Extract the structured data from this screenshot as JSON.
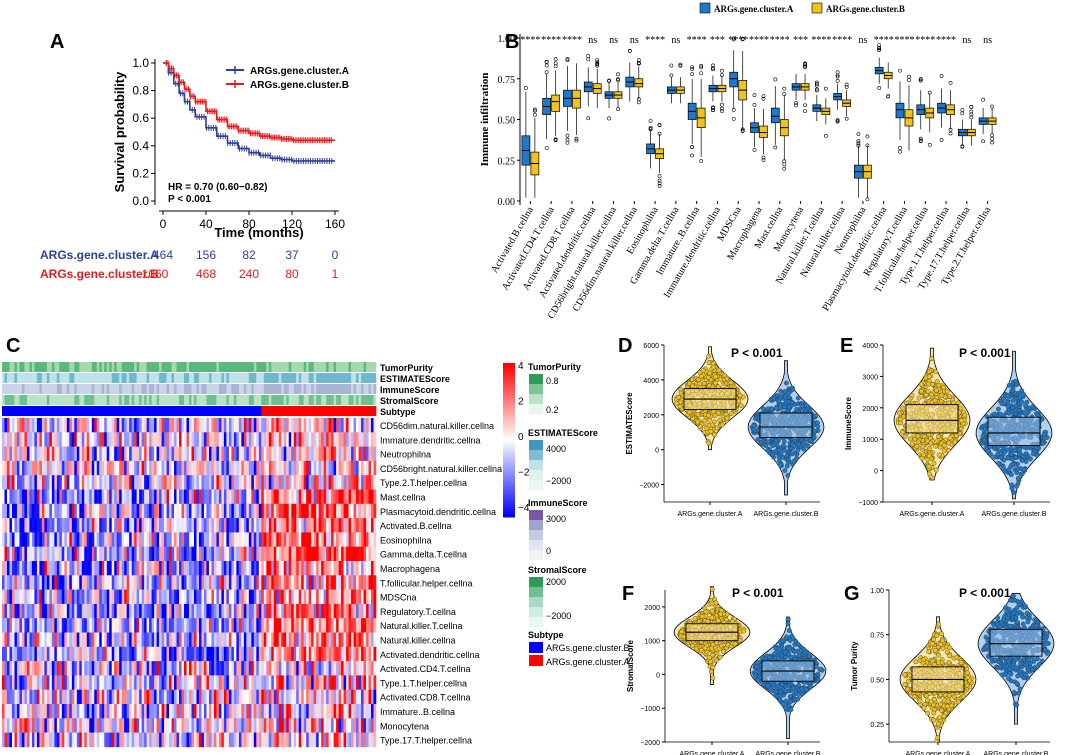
{
  "colors": {
    "cluster_a": "#2e3f97",
    "cluster_b": "#e41a1c",
    "box_a": "#1f78c8",
    "box_b": "#f0c21c",
    "heat_high": "#ff0000",
    "heat_mid": "#ffffff",
    "heat_low": "#0000ff",
    "tumor": "#3ba56a",
    "estimate": "#4aa3c6",
    "immune": "#7a57a6",
    "stromal": "#37a36a"
  },
  "chart_data": [
    {
      "panel": "A",
      "type": "line",
      "title": "",
      "xlabel": "Time (months)",
      "ylabel": "Survival probability",
      "xlim": [
        0,
        160
      ],
      "ylim": [
        0.0,
        1.0
      ],
      "xticks": [
        "0",
        "40",
        "80",
        "120",
        "160"
      ],
      "yticks": [
        "0.0",
        "0.2",
        "0.4",
        "0.6",
        "0.8",
        "1.0"
      ],
      "series": [
        {
          "name": "ARGs.gene.cluster.A",
          "x": [
            0,
            5,
            10,
            15,
            20,
            25,
            30,
            40,
            50,
            60,
            70,
            80,
            90,
            100,
            110,
            120,
            130,
            140,
            150,
            160
          ],
          "values": [
            1.0,
            0.93,
            0.85,
            0.78,
            0.72,
            0.66,
            0.61,
            0.53,
            0.47,
            0.42,
            0.38,
            0.35,
            0.33,
            0.31,
            0.3,
            0.29,
            0.29,
            0.29,
            0.29,
            0.29
          ]
        },
        {
          "name": "ARGs.gene.cluster.B",
          "x": [
            0,
            5,
            10,
            15,
            20,
            25,
            30,
            40,
            50,
            60,
            70,
            80,
            90,
            100,
            110,
            120,
            130,
            140,
            150,
            160
          ],
          "values": [
            1.0,
            0.96,
            0.91,
            0.86,
            0.81,
            0.76,
            0.72,
            0.65,
            0.59,
            0.54,
            0.51,
            0.49,
            0.47,
            0.46,
            0.45,
            0.44,
            0.44,
            0.44,
            0.44,
            0.44
          ]
        }
      ],
      "annotations": [
        "HR = 0.70 (0.60−0.82)",
        "P < 0.001"
      ],
      "risk_table": {
        "rows": [
          {
            "label": "ARGs.gene.cluster.A",
            "values": [
              "464",
              "156",
              "82",
              "37",
              "0"
            ]
          },
          {
            "label": "ARGs.gene.cluster.B",
            "values": [
              "1060",
              "468",
              "240",
              "80",
              "1"
            ]
          }
        ]
      },
      "legend": "top-right"
    },
    {
      "panel": "B",
      "type": "box",
      "ylabel": "Immune infiltration",
      "ylim": [
        0.0,
        1.0
      ],
      "yticks": [
        "0.00",
        "0.25",
        "0.50",
        "0.75",
        "1.00"
      ],
      "legend": [
        "ARGs.gene.cluster.A",
        "ARGs.gene.cluster.B"
      ],
      "categories": [
        "Activated.B.cellna",
        "Activated.CD4.T.cellna",
        "Activated.CD8.T.cellna",
        "Activated.dendritic.cellna",
        "CD56bright.natural.killer.cellna",
        "CD56dim.natural.killer.cellna",
        "Eosinophilna",
        "Gamma.delta.T.cellna",
        "Immature..B.cellna",
        "Immature.dendritic.cellna",
        "MDSCna",
        "Macrophagena",
        "Mast.cellna",
        "Monocytena",
        "Natural.killer.T.cellna",
        "Natural.killer.cellna",
        "Neutrophilna",
        "Plasmacytoid.dendritic.cellna",
        "Regulatory.T.cellna",
        "T.follicular.helper.cellna",
        "Type.1.T.helper.cellna",
        "Type.17.T.helper.cellna",
        "Type.2.T.helper.cellna"
      ],
      "significance": [
        "****",
        "****",
        "****",
        "ns",
        "ns",
        "ns",
        "****",
        "ns",
        "****",
        "***",
        "****",
        "****",
        "****",
        "***",
        "****",
        "****",
        "ns",
        "****",
        "****",
        "****",
        "****",
        "ns",
        "ns"
      ],
      "series": [
        {
          "name": "ARGs.gene.cluster.A",
          "median": [
            0.31,
            0.58,
            0.63,
            0.7,
            0.65,
            0.73,
            0.32,
            0.68,
            0.55,
            0.69,
            0.75,
            0.45,
            0.52,
            0.7,
            0.57,
            0.64,
            0.18,
            0.8,
            0.56,
            0.56,
            0.57,
            0.42,
            0.49
          ],
          "q1": [
            0.22,
            0.53,
            0.58,
            0.67,
            0.63,
            0.7,
            0.29,
            0.66,
            0.5,
            0.67,
            0.7,
            0.42,
            0.48,
            0.68,
            0.55,
            0.62,
            0.14,
            0.78,
            0.51,
            0.53,
            0.54,
            0.4,
            0.47
          ],
          "q3": [
            0.4,
            0.63,
            0.68,
            0.73,
            0.67,
            0.76,
            0.35,
            0.7,
            0.6,
            0.71,
            0.79,
            0.48,
            0.57,
            0.72,
            0.59,
            0.66,
            0.22,
            0.82,
            0.6,
            0.59,
            0.6,
            0.44,
            0.51
          ]
        },
        {
          "name": "ARGs.gene.cluster.B",
          "median": [
            0.23,
            0.61,
            0.63,
            0.69,
            0.65,
            0.72,
            0.29,
            0.68,
            0.51,
            0.69,
            0.68,
            0.42,
            0.45,
            0.7,
            0.55,
            0.6,
            0.18,
            0.77,
            0.51,
            0.54,
            0.56,
            0.42,
            0.49
          ],
          "q1": [
            0.16,
            0.55,
            0.57,
            0.66,
            0.63,
            0.7,
            0.26,
            0.66,
            0.45,
            0.67,
            0.62,
            0.39,
            0.4,
            0.68,
            0.53,
            0.58,
            0.14,
            0.75,
            0.46,
            0.51,
            0.53,
            0.4,
            0.47
          ],
          "q3": [
            0.3,
            0.65,
            0.68,
            0.72,
            0.67,
            0.75,
            0.32,
            0.7,
            0.57,
            0.71,
            0.74,
            0.46,
            0.5,
            0.72,
            0.57,
            0.62,
            0.22,
            0.79,
            0.56,
            0.57,
            0.59,
            0.44,
            0.51
          ]
        }
      ]
    },
    {
      "panel": "C",
      "type": "heatmap",
      "annotation_rows": [
        "TumorPurity",
        "ESTIMATEScore",
        "ImmuneScore",
        "StromalScore",
        "Subtype"
      ],
      "rows": [
        "CD56dim.natural.killer.cellna",
        "Immature.dendritic.cellna",
        "Neutrophilna",
        "CD56bright.natural.killer.cellna",
        "Type.2.T.helper.cellna",
        "Mast.cellna",
        "Plasmacytoid.dendritic.cellna",
        "Activated.B.cellna",
        "Eosinophilna",
        "Gamma.delta.T.cellna",
        "Macrophagena",
        "T.follicular.helper.cellna",
        "MDSCna",
        "Regulatory.T.cellna",
        "Natural.killer.T.cellna",
        "Natural.killer.cellna",
        "Activated.dendritic.cellna",
        "Activated.CD4.T.cellna",
        "Type.1.T.helper.cellna",
        "Activated.CD8.T.cellna",
        "Immature..B.cellna",
        "Monocytena",
        "Type.17.T.helper.cellna"
      ],
      "colorbar_ticks": [
        "4",
        "2",
        "0",
        "−2",
        "−4"
      ],
      "legends": [
        {
          "title": "TumorPurity",
          "ticks": [
            "0.8",
            "0.2"
          ]
        },
        {
          "title": "ESTIMATEScore",
          "ticks": [
            "4000",
            "−2000"
          ]
        },
        {
          "title": "ImmuneScore",
          "ticks": [
            "3000",
            "0"
          ]
        },
        {
          "title": "StromalScore",
          "ticks": [
            "2000",
            "−2000"
          ]
        },
        {
          "title": "Subtype",
          "ticks": [
            "ARGs.gene.cluster.B",
            "ARGs.gene.cluster.A"
          ]
        }
      ]
    },
    {
      "panel": "D",
      "type": "violin",
      "ylabel": "ESTIMATEScore",
      "annotation": "P < 0.001",
      "categories": [
        "ARGs.gene.cluster.A",
        "ARGs.gene.cluster.B"
      ],
      "ylim": [
        -3000,
        6000
      ],
      "yticks": [
        "6000",
        "4000",
        "2000",
        "0",
        "−2000"
      ],
      "median": [
        2900,
        1300
      ],
      "q1": [
        2300,
        700
      ],
      "q3": [
        3500,
        2100
      ],
      "min": [
        0,
        -2600
      ],
      "max": [
        5900,
        5100
      ]
    },
    {
      "panel": "E",
      "type": "violin",
      "ylabel": "ImmuneScore",
      "annotation": "P < 0.001",
      "categories": [
        "ARGs.gene.cluster.A",
        "ARGs.gene.cluster.B"
      ],
      "ylim": [
        -1000,
        4000
      ],
      "yticks": [
        "4000",
        "3000",
        "2000",
        "1000",
        "0",
        "−1000"
      ],
      "median": [
        1600,
        1200
      ],
      "q1": [
        1200,
        800
      ],
      "q3": [
        2100,
        1700
      ],
      "min": [
        -300,
        -900
      ],
      "max": [
        3900,
        3800
      ]
    },
    {
      "panel": "F",
      "type": "violin",
      "ylabel": "StromalScore",
      "annotation": "P < 0.001",
      "categories": [
        "ARGs.gene.cluster.A",
        "ARGs.gene.cluster.B"
      ],
      "ylim": [
        -2000,
        2500
      ],
      "yticks": [
        "2000",
        "1000",
        "0",
        "−1000",
        "−2000"
      ],
      "median": [
        1250,
        100
      ],
      "q1": [
        1000,
        -200
      ],
      "q3": [
        1500,
        400
      ],
      "min": [
        -300,
        -1900
      ],
      "max": [
        2600,
        1700
      ]
    },
    {
      "panel": "G",
      "type": "violin",
      "ylabel": "Tumor Purity",
      "annotation": "P < 0.001",
      "categories": [
        "ARGs.gene.cluster.A",
        "ARGs.gene.cluster.B"
      ],
      "ylim": [
        0.15,
        1.0
      ],
      "yticks": [
        "1.00",
        "0.75",
        "0.50",
        "0.25"
      ],
      "median": [
        0.5,
        0.7
      ],
      "q1": [
        0.43,
        0.63
      ],
      "q3": [
        0.57,
        0.78
      ],
      "min": [
        0.15,
        0.25
      ],
      "max": [
        0.85,
        0.98
      ]
    }
  ]
}
